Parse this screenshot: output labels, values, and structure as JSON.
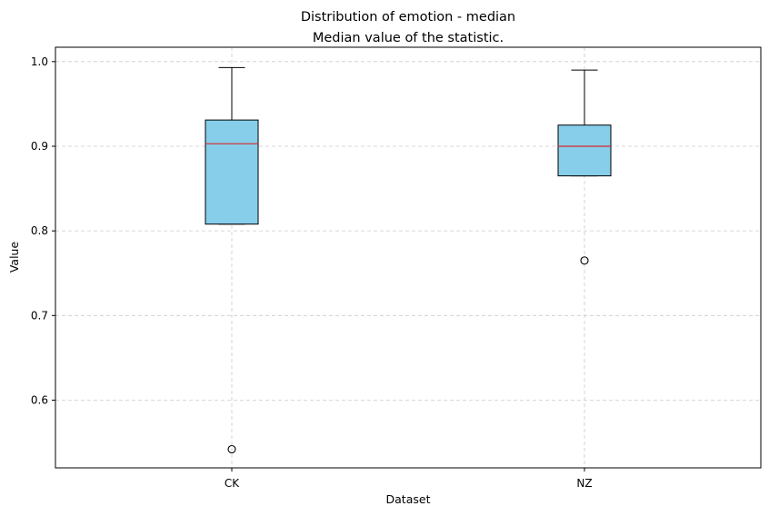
{
  "chart_data": {
    "type": "boxplot",
    "title": "Distribution of emotion - median",
    "subtitle": "Median value of the statistic.",
    "xlabel": "Dataset",
    "ylabel": "Value",
    "ylim": [
      0.52,
      1.017
    ],
    "yticks": [
      "0.6",
      "0.7",
      "0.8",
      "0.9",
      "1.0"
    ],
    "grid": true,
    "categories": [
      "CK",
      "NZ"
    ],
    "boxes": [
      {
        "category": "CK",
        "whisker_low": 0.808,
        "q1": 0.808,
        "median": 0.903,
        "q3": 0.931,
        "whisker_high": 0.993,
        "outliers": [
          0.542
        ]
      },
      {
        "category": "NZ",
        "whisker_low": 0.865,
        "q1": 0.865,
        "median": 0.9,
        "q3": 0.925,
        "whisker_high": 0.99,
        "outliers": [
          0.765
        ]
      }
    ],
    "colors": {
      "box_fill": "#87ceeb",
      "median": "#d62728",
      "grid": "#cccccc"
    }
  }
}
